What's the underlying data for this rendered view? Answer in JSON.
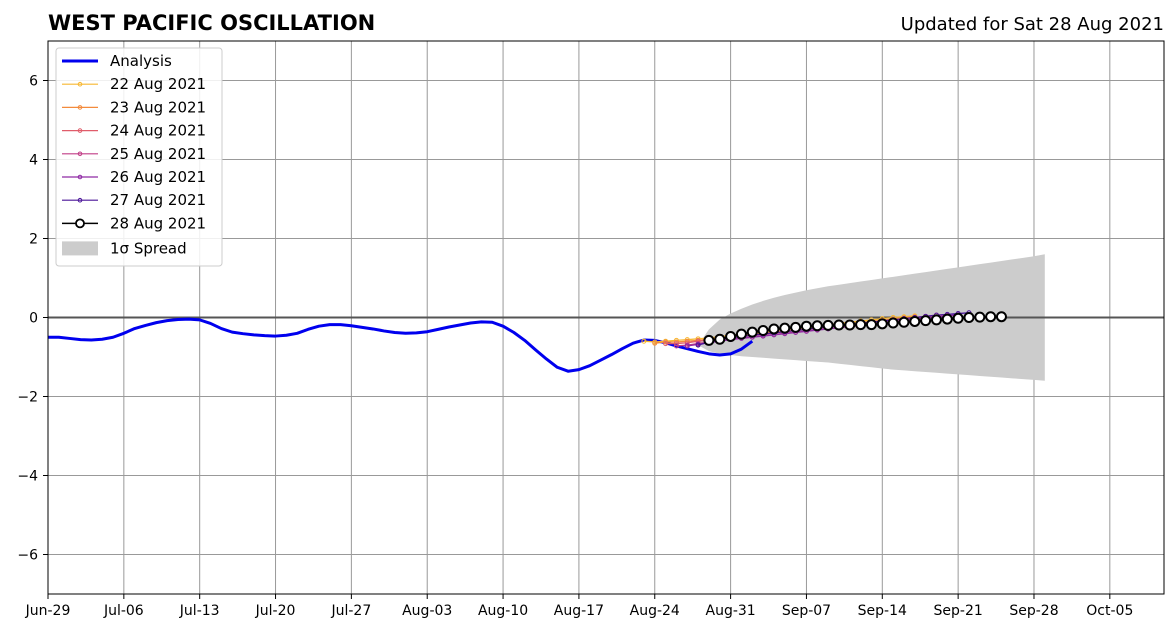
{
  "chart_data": {
    "type": "line",
    "title": "WEST PACIFIC OSCILLATION",
    "subtitle": "Updated for Sat 28 Aug 2021",
    "xlabel": "",
    "ylabel": "",
    "ylim": [
      -7,
      7
    ],
    "yticks": [
      -6,
      -4,
      -2,
      0,
      2,
      4,
      6
    ],
    "ytick_labels": [
      "−6",
      "−4",
      "−2",
      "0",
      "2",
      "4",
      "6"
    ],
    "xlim": [
      "2021-06-29",
      "2021-10-10"
    ],
    "xticks": [
      "2021-06-29",
      "2021-07-06",
      "2021-07-13",
      "2021-07-20",
      "2021-07-27",
      "2021-08-03",
      "2021-08-10",
      "2021-08-17",
      "2021-08-24",
      "2021-08-31",
      "2021-09-07",
      "2021-09-14",
      "2021-09-21",
      "2021-09-28",
      "2021-10-05"
    ],
    "xtick_labels": [
      "Jun-29",
      "Jul-06",
      "Jul-13",
      "Jul-20",
      "Jul-27",
      "Aug-03",
      "Aug-10",
      "Aug-17",
      "Aug-24",
      "Aug-31",
      "Sep-07",
      "Sep-14",
      "Sep-21",
      "Sep-28",
      "Oct-05"
    ],
    "grid": true,
    "legend_placement": "upper-left",
    "colors": {
      "analysis": "#0000ee",
      "spread": "#cccccc",
      "grid": "#999999",
      "zero_line": "#555555"
    },
    "analysis": {
      "name": "Analysis",
      "start": "2021-06-29",
      "values": [
        -0.5,
        -0.5,
        -0.53,
        -0.56,
        -0.57,
        -0.55,
        -0.5,
        -0.4,
        -0.28,
        -0.2,
        -0.13,
        -0.08,
        -0.05,
        -0.04,
        -0.06,
        -0.15,
        -0.28,
        -0.37,
        -0.41,
        -0.44,
        -0.46,
        -0.47,
        -0.45,
        -0.4,
        -0.3,
        -0.22,
        -0.18,
        -0.18,
        -0.21,
        -0.25,
        -0.29,
        -0.34,
        -0.38,
        -0.4,
        -0.39,
        -0.36,
        -0.3,
        -0.24,
        -0.19,
        -0.14,
        -0.11,
        -0.12,
        -0.22,
        -0.38,
        -0.58,
        -0.82,
        -1.05,
        -1.26,
        -1.36,
        -1.32,
        -1.22,
        -1.08,
        -0.94,
        -0.79,
        -0.65,
        -0.57,
        -0.58,
        -0.64,
        -0.72,
        -0.79,
        -0.86,
        -0.92,
        -0.95,
        -0.92,
        -0.8,
        -0.6
      ]
    },
    "forecasts": [
      {
        "name": "22 Aug 2021",
        "color": "#f7b731",
        "start": "2021-08-23",
        "values": [
          -0.6,
          -0.62,
          -0.6,
          -0.58,
          -0.56,
          -0.54,
          -0.52,
          -0.48,
          -0.45,
          -0.42,
          -0.39,
          -0.36,
          -0.33,
          -0.3,
          -0.27,
          -0.24,
          -0.21,
          -0.18,
          -0.15,
          -0.12,
          -0.09,
          -0.06,
          -0.03,
          0.0,
          0.02,
          0.04
        ]
      },
      {
        "name": "23 Aug 2021",
        "color": "#f38b3c",
        "start": "2021-08-24",
        "values": [
          -0.65,
          -0.62,
          -0.62,
          -0.6,
          -0.58,
          -0.55,
          -0.52,
          -0.49,
          -0.46,
          -0.43,
          -0.4,
          -0.37,
          -0.34,
          -0.31,
          -0.28,
          -0.25,
          -0.22,
          -0.19,
          -0.16,
          -0.13,
          -0.1,
          -0.07,
          -0.04,
          -0.01,
          0.02
        ]
      },
      {
        "name": "24 Aug 2021",
        "color": "#e05c6a",
        "start": "2021-08-25",
        "values": [
          -0.66,
          -0.66,
          -0.64,
          -0.6,
          -0.57,
          -0.54,
          -0.51,
          -0.48,
          -0.45,
          -0.42,
          -0.39,
          -0.36,
          -0.33,
          -0.3,
          -0.27,
          -0.24,
          -0.21,
          -0.18,
          -0.15,
          -0.12,
          -0.09,
          -0.06,
          -0.03,
          0.0,
          0.03,
          0.06
        ]
      },
      {
        "name": "25 Aug 2021",
        "color": "#c13d86",
        "start": "2021-08-26",
        "values": [
          -0.72,
          -0.7,
          -0.66,
          -0.62,
          -0.58,
          -0.55,
          -0.52,
          -0.49,
          -0.46,
          -0.43,
          -0.4,
          -0.37,
          -0.34,
          -0.31,
          -0.28,
          -0.25,
          -0.22,
          -0.19,
          -0.16,
          -0.13,
          -0.1,
          -0.07,
          -0.04,
          -0.01,
          0.02,
          0.05
        ]
      },
      {
        "name": "26 Aug 2021",
        "color": "#8f2aa5",
        "start": "2021-08-27",
        "values": [
          -0.72,
          -0.68,
          -0.64,
          -0.6,
          -0.56,
          -0.53,
          -0.5,
          -0.47,
          -0.44,
          -0.41,
          -0.38,
          -0.35,
          -0.32,
          -0.29,
          -0.26,
          -0.23,
          -0.2,
          -0.17,
          -0.14,
          -0.11,
          -0.08,
          -0.05,
          -0.02,
          0.01,
          0.04,
          0.07
        ]
      },
      {
        "name": "27 Aug 2021",
        "color": "#4a1499",
        "start": "2021-08-28",
        "values": [
          -0.7,
          -0.62,
          -0.56,
          -0.52,
          -0.48,
          -0.45,
          -0.42,
          -0.39,
          -0.36,
          -0.33,
          -0.3,
          -0.27,
          -0.24,
          -0.21,
          -0.18,
          -0.15,
          -0.12,
          -0.09,
          -0.06,
          -0.03,
          0.0,
          0.03,
          0.06,
          0.08,
          0.1,
          0.12
        ]
      },
      {
        "name": "28 Aug 2021",
        "color": "#000000",
        "start": "2021-08-29",
        "values": [
          -0.58,
          -0.55,
          -0.48,
          -0.42,
          -0.37,
          -0.33,
          -0.29,
          -0.27,
          -0.25,
          -0.22,
          -0.21,
          -0.2,
          -0.19,
          -0.19,
          -0.18,
          -0.18,
          -0.16,
          -0.14,
          -0.12,
          -0.1,
          -0.08,
          -0.06,
          -0.04,
          -0.02,
          0.0,
          0.01,
          0.02,
          0.02
        ]
      }
    ],
    "spread": {
      "name": "1σ Spread",
      "start": "2021-08-28",
      "upper": [
        -0.7,
        -0.3,
        -0.05,
        0.1,
        0.22,
        0.33,
        0.42,
        0.5,
        0.57,
        0.63,
        0.69,
        0.74,
        0.79,
        0.83,
        0.87,
        0.91,
        0.95,
        0.99,
        1.03,
        1.07,
        1.11,
        1.15,
        1.19,
        1.23,
        1.27,
        1.31,
        1.35,
        1.39,
        1.43,
        1.47,
        1.51,
        1.55,
        1.6
      ],
      "lower": [
        -0.7,
        -0.85,
        -0.92,
        -0.95,
        -0.98,
        -1.0,
        -1.02,
        -1.04,
        -1.06,
        -1.08,
        -1.1,
        -1.12,
        -1.14,
        -1.17,
        -1.2,
        -1.23,
        -1.26,
        -1.29,
        -1.32,
        -1.34,
        -1.36,
        -1.38,
        -1.4,
        -1.42,
        -1.44,
        -1.46,
        -1.48,
        -1.5,
        -1.52,
        -1.54,
        -1.56,
        -1.58,
        -1.6
      ]
    }
  }
}
